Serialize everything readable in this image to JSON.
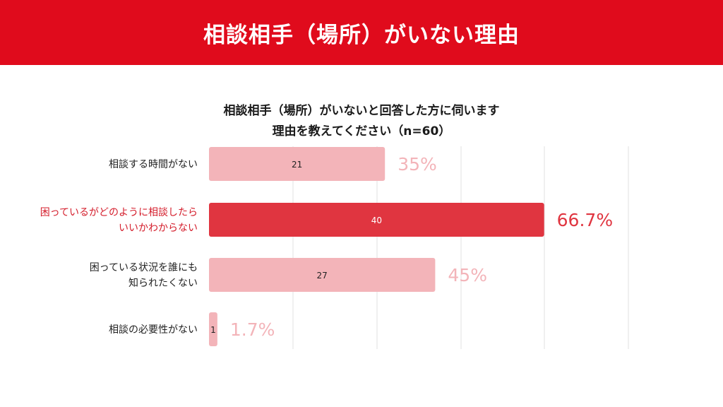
{
  "header": {
    "title": "相談相手（場所）がいない理由"
  },
  "chart_data": {
    "type": "bar",
    "orientation": "horizontal",
    "title_lines": [
      "相談相手（場所）がいないと回答した方に伺います",
      "理由を教えてください（n=60）"
    ],
    "n": 60,
    "categories": [
      [
        "相談する時間がない"
      ],
      [
        "困っているがどのように相談したら",
        "いいかわからない"
      ],
      [
        "困っている状況を誰にも",
        "知られたくない"
      ],
      [
        "相談の必要性がない"
      ]
    ],
    "values": [
      21,
      40,
      27,
      1
    ],
    "percent_labels": [
      "35%",
      "66.7%",
      "45%",
      "1.7%"
    ],
    "highlight_index": 1,
    "xlim": [
      0,
      100
    ],
    "grid": true,
    "colors": {
      "bar": "#f3b4b9",
      "highlight": "#e03540",
      "value_text_dark": "#222222",
      "value_text_light": "#ffffff"
    }
  }
}
